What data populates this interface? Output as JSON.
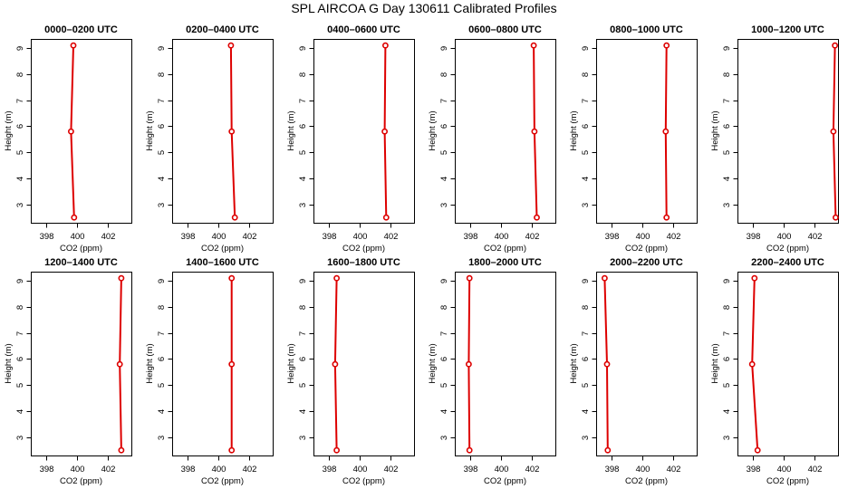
{
  "title": "SPL AIRCOA G  Day 130611  Calibrated Profiles",
  "colors": {
    "profile": "#dd0000",
    "axis": "#000000"
  },
  "chart_data": [
    {
      "type": "line",
      "title": "0000–0200 UTC",
      "xlabel": "CO2 (ppm)",
      "ylabel": "Height (m)",
      "xlim": [
        397,
        403.5
      ],
      "ylim": [
        2.3,
        9.35
      ],
      "xticks": [
        398,
        400,
        402
      ],
      "yticks": [
        3,
        4,
        5,
        6,
        7,
        8,
        9
      ],
      "grid": false,
      "series": [
        {
          "x": [
            399.8,
            399.6,
            399.75
          ],
          "y": [
            2.5,
            5.8,
            9.1
          ]
        }
      ]
    },
    {
      "type": "line",
      "title": "0200–0400 UTC",
      "xlabel": "CO2 (ppm)",
      "ylabel": "Height (m)",
      "xlim": [
        397,
        403.5
      ],
      "ylim": [
        2.3,
        9.35
      ],
      "xticks": [
        398,
        400,
        402
      ],
      "yticks": [
        3,
        4,
        5,
        6,
        7,
        8,
        9
      ],
      "grid": false,
      "series": [
        {
          "x": [
            401.05,
            400.85,
            400.8
          ],
          "y": [
            2.5,
            5.8,
            9.1
          ]
        }
      ]
    },
    {
      "type": "line",
      "title": "0400–0600 UTC",
      "xlabel": "CO2 (ppm)",
      "ylabel": "Height (m)",
      "xlim": [
        397,
        403.5
      ],
      "ylim": [
        2.3,
        9.35
      ],
      "xticks": [
        398,
        400,
        402
      ],
      "yticks": [
        3,
        4,
        5,
        6,
        7,
        8,
        9
      ],
      "grid": false,
      "series": [
        {
          "x": [
            401.7,
            401.6,
            401.65
          ],
          "y": [
            2.5,
            5.8,
            9.1
          ]
        }
      ]
    },
    {
      "type": "line",
      "title": "0600–0800 UTC",
      "xlabel": "CO2 (ppm)",
      "ylabel": "Height (m)",
      "xlim": [
        397,
        403.5
      ],
      "ylim": [
        2.3,
        9.35
      ],
      "xticks": [
        398,
        400,
        402
      ],
      "yticks": [
        3,
        4,
        5,
        6,
        7,
        8,
        9
      ],
      "grid": false,
      "series": [
        {
          "x": [
            402.3,
            402.15,
            402.1
          ],
          "y": [
            2.5,
            5.8,
            9.1
          ]
        }
      ]
    },
    {
      "type": "line",
      "title": "0800–1000 UTC",
      "xlabel": "CO2 (ppm)",
      "ylabel": "Height (m)",
      "xlim": [
        397,
        403.5
      ],
      "ylim": [
        2.3,
        9.35
      ],
      "xticks": [
        398,
        400,
        402
      ],
      "yticks": [
        3,
        4,
        5,
        6,
        7,
        8,
        9
      ],
      "grid": false,
      "series": [
        {
          "x": [
            401.55,
            401.5,
            401.55
          ],
          "y": [
            2.5,
            5.8,
            9.1
          ]
        }
      ]
    },
    {
      "type": "line",
      "title": "1000–1200 UTC",
      "xlabel": "CO2 (ppm)",
      "ylabel": "Height (m)",
      "xlim": [
        397,
        403.5
      ],
      "ylim": [
        2.3,
        9.35
      ],
      "xticks": [
        398,
        400,
        402
      ],
      "yticks": [
        3,
        4,
        5,
        6,
        7,
        8,
        9
      ],
      "grid": false,
      "series": [
        {
          "x": [
            403.35,
            403.2,
            403.3
          ],
          "y": [
            2.5,
            5.8,
            9.1
          ]
        }
      ]
    },
    {
      "type": "line",
      "title": "1200–1400 UTC",
      "xlabel": "CO2 (ppm)",
      "ylabel": "Height (m)",
      "xlim": [
        397,
        403.5
      ],
      "ylim": [
        2.3,
        9.35
      ],
      "xticks": [
        398,
        400,
        402
      ],
      "yticks": [
        3,
        4,
        5,
        6,
        7,
        8,
        9
      ],
      "grid": false,
      "series": [
        {
          "x": [
            402.85,
            402.75,
            402.85
          ],
          "y": [
            2.5,
            5.8,
            9.1
          ]
        }
      ]
    },
    {
      "type": "line",
      "title": "1400–1600 UTC",
      "xlabel": "CO2 (ppm)",
      "ylabel": "Height (m)",
      "xlim": [
        397,
        403.5
      ],
      "ylim": [
        2.3,
        9.35
      ],
      "xticks": [
        398,
        400,
        402
      ],
      "yticks": [
        3,
        4,
        5,
        6,
        7,
        8,
        9
      ],
      "grid": false,
      "series": [
        {
          "x": [
            400.85,
            400.85,
            400.85
          ],
          "y": [
            2.5,
            5.8,
            9.1
          ]
        }
      ]
    },
    {
      "type": "line",
      "title": "1600–1800 UTC",
      "xlabel": "CO2 (ppm)",
      "ylabel": "Height (m)",
      "xlim": [
        397,
        403.5
      ],
      "ylim": [
        2.3,
        9.35
      ],
      "xticks": [
        398,
        400,
        402
      ],
      "yticks": [
        3,
        4,
        5,
        6,
        7,
        8,
        9
      ],
      "grid": false,
      "series": [
        {
          "x": [
            398.5,
            398.4,
            398.5
          ],
          "y": [
            2.5,
            5.8,
            9.1
          ]
        }
      ]
    },
    {
      "type": "line",
      "title": "1800–2000 UTC",
      "xlabel": "CO2 (ppm)",
      "ylabel": "Height (m)",
      "xlim": [
        397,
        403.5
      ],
      "ylim": [
        2.3,
        9.35
      ],
      "xticks": [
        398,
        400,
        402
      ],
      "yticks": [
        3,
        4,
        5,
        6,
        7,
        8,
        9
      ],
      "grid": false,
      "series": [
        {
          "x": [
            397.95,
            397.9,
            397.95
          ],
          "y": [
            2.5,
            5.8,
            9.1
          ]
        }
      ]
    },
    {
      "type": "line",
      "title": "2000–2200 UTC",
      "xlabel": "CO2 (ppm)",
      "ylabel": "Height (m)",
      "xlim": [
        397,
        403.5
      ],
      "ylim": [
        2.3,
        9.35
      ],
      "xticks": [
        398,
        400,
        402
      ],
      "yticks": [
        3,
        4,
        5,
        6,
        7,
        8,
        9
      ],
      "grid": false,
      "series": [
        {
          "x": [
            397.75,
            397.7,
            397.55
          ],
          "y": [
            2.5,
            5.8,
            9.1
          ]
        }
      ]
    },
    {
      "type": "line",
      "title": "2200–2400 UTC",
      "xlabel": "CO2 (ppm)",
      "ylabel": "Height (m)",
      "xlim": [
        397,
        403.5
      ],
      "ylim": [
        2.3,
        9.35
      ],
      "xticks": [
        398,
        400,
        402
      ],
      "yticks": [
        3,
        4,
        5,
        6,
        7,
        8,
        9
      ],
      "grid": false,
      "series": [
        {
          "x": [
            398.3,
            397.95,
            398.1
          ],
          "y": [
            2.5,
            5.8,
            9.1
          ]
        }
      ]
    }
  ]
}
